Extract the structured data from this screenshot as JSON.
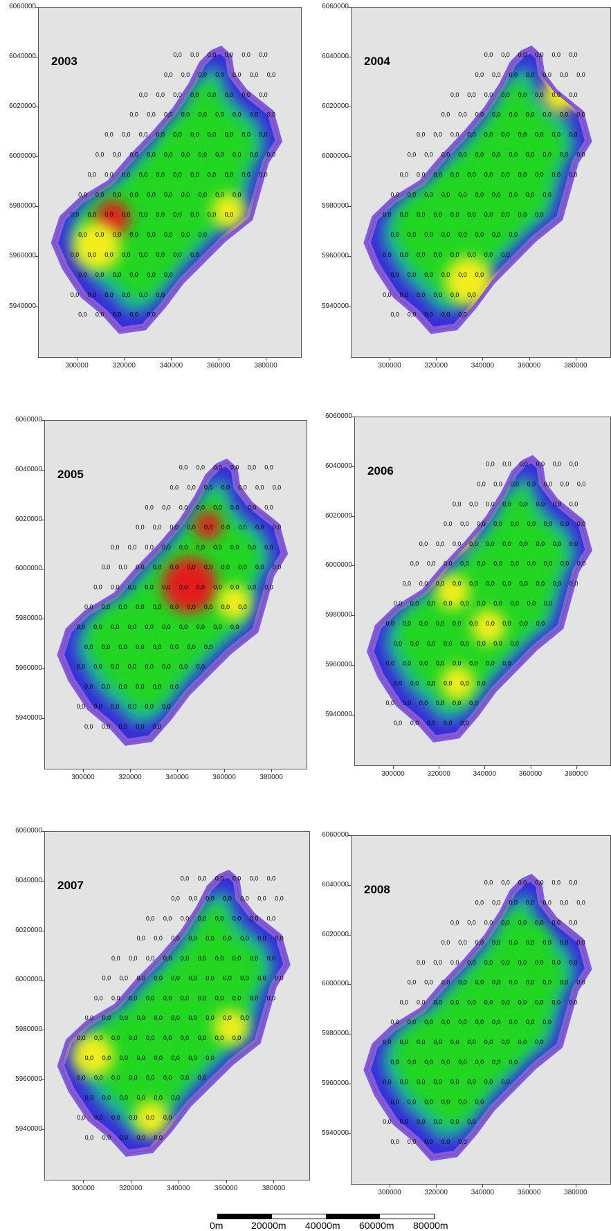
{
  "panels": [
    {
      "year": "2003"
    },
    {
      "year": "2004"
    },
    {
      "year": "2005"
    },
    {
      "year": "2006"
    },
    {
      "year": "2007"
    },
    {
      "year": "2008"
    }
  ],
  "y_ticks": [
    "6060000",
    "6040000",
    "6020000",
    "6000000",
    "5980000",
    "5960000",
    "5940000"
  ],
  "x_ticks": [
    "300000",
    "320000",
    "340000",
    "360000",
    "380000"
  ],
  "scale_bar": {
    "labels": [
      "0m",
      "20000m",
      "40000m",
      "60000m",
      "80000m"
    ]
  },
  "sample_value_text": "0,0",
  "colors": {
    "background": "#e3e3e3",
    "low": "#3a2bd8",
    "mid_low": "#1fb4a0",
    "mid": "#22d622",
    "mid_high": "#f2ee1a",
    "high": "#e21a1a",
    "boundary": "#cc3333"
  }
}
